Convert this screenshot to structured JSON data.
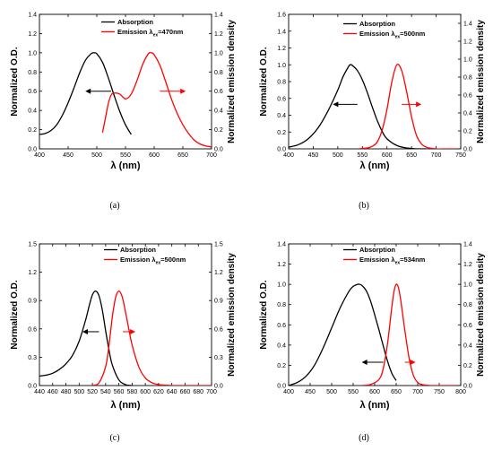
{
  "chart_data": [
    {
      "id": "a",
      "type": "line",
      "panel_label": "(a)",
      "xlabel": "λ (nm)",
      "ylabel_left": "Normalized O.D.",
      "ylabel_right": "Normalized emission density",
      "xlim": [
        400,
        700
      ],
      "ylim": [
        0,
        1.4
      ],
      "xticks": [
        400,
        450,
        500,
        550,
        600,
        650,
        700
      ],
      "xtick_labels": [
        "400",
        "450",
        "500",
        "550",
        "600",
        "650",
        "700"
      ],
      "yticks": [
        0,
        0.2,
        0.4,
        0.6,
        0.8,
        1.0,
        1.2,
        1.4
      ],
      "ytick_labels": [
        "0.0",
        "0.2",
        "0.4",
        "0.6",
        "0.8",
        "1.0",
        "1.2",
        "1.4"
      ],
      "legend": [
        {
          "label": "Absorption",
          "sub": "",
          "suffix": "",
          "color": "#000000"
        },
        {
          "label": "Emission λ",
          "sub": "ex",
          "suffix": "=470nm",
          "color": "#ff0000"
        }
      ],
      "series": [
        {
          "name": "Absorption",
          "color": "#000000",
          "x": [
            400,
            410,
            420,
            430,
            440,
            450,
            460,
            470,
            480,
            490,
            495,
            500,
            510,
            520,
            530,
            540,
            550,
            560
          ],
          "y": [
            0.15,
            0.16,
            0.19,
            0.25,
            0.35,
            0.48,
            0.63,
            0.79,
            0.92,
            0.99,
            1.0,
            0.99,
            0.9,
            0.74,
            0.56,
            0.39,
            0.25,
            0.15
          ]
        },
        {
          "name": "Emission λex=470nm",
          "color": "#ff0000",
          "x": [
            510,
            515,
            520,
            525,
            530,
            540,
            550,
            560,
            570,
            580,
            590,
            595,
            600,
            610,
            620,
            630,
            640,
            650,
            660,
            670,
            680,
            690,
            700
          ],
          "y": [
            0.17,
            0.32,
            0.47,
            0.56,
            0.58,
            0.57,
            0.52,
            0.57,
            0.71,
            0.88,
            0.99,
            1.0,
            0.98,
            0.87,
            0.7,
            0.52,
            0.37,
            0.25,
            0.16,
            0.09,
            0.05,
            0.03,
            0.02
          ]
        }
      ],
      "arrows": [
        {
          "color": "#000000",
          "y": 0.6,
          "x_from": 525,
          "x_to": 480
        },
        {
          "color": "#ff0000",
          "y": 0.6,
          "x_from": 610,
          "x_to": 655
        }
      ]
    },
    {
      "id": "b",
      "type": "line",
      "panel_label": "(b)",
      "xlabel": "λ (nm)",
      "ylabel_left": "Normalized O.D.",
      "ylabel_right": "Normalized emission density",
      "xlim": [
        400,
        750
      ],
      "ylim": [
        0,
        1.6
      ],
      "xticks": [
        400,
        450,
        500,
        550,
        600,
        650,
        700,
        750
      ],
      "xtick_labels": [
        "400",
        "450",
        "500",
        "550",
        "600",
        "650",
        "700",
        "750"
      ],
      "yticks": [
        0,
        0.2,
        0.4,
        0.6,
        0.8,
        1.0,
        1.2,
        1.4,
        1.6
      ],
      "ytick_labels": [
        "0.0",
        "0.2",
        "0.4",
        "0.6",
        "0.8",
        "1.0",
        "1.2",
        "1.4",
        "1.6"
      ],
      "right_yticks": [
        0,
        0.2,
        0.4,
        0.6,
        0.8,
        1.0,
        1.2,
        1.4
      ],
      "right_ytick_labels": [
        "0.0",
        "0.2",
        "0.4",
        "0.6",
        "0.8",
        "1.0",
        "1.2",
        "1.4"
      ],
      "right_ylim": [
        0,
        1.5
      ],
      "legend": [
        {
          "label": "Absorption",
          "sub": "",
          "suffix": "",
          "color": "#000000"
        },
        {
          "label": "Emission λ",
          "sub": "ex",
          "suffix": "=500nm",
          "color": "#ff0000"
        }
      ],
      "series": [
        {
          "name": "Absorption",
          "color": "#000000",
          "x": [
            400,
            420,
            440,
            460,
            480,
            500,
            510,
            520,
            525,
            530,
            540,
            550,
            560,
            570,
            580,
            590,
            600,
            620,
            640,
            660,
            680
          ],
          "y": [
            0.02,
            0.05,
            0.12,
            0.25,
            0.45,
            0.7,
            0.85,
            0.96,
            1.0,
            0.99,
            0.93,
            0.82,
            0.67,
            0.5,
            0.34,
            0.21,
            0.12,
            0.04,
            0.01,
            0.0,
            0.0
          ]
        },
        {
          "name": "Emission λex=500nm",
          "color": "#ff0000",
          "x": [
            540,
            560,
            570,
            580,
            590,
            600,
            610,
            620,
            630,
            640,
            650,
            660,
            670,
            680,
            700,
            720,
            740
          ],
          "y": [
            0.0,
            0.01,
            0.03,
            0.08,
            0.22,
            0.47,
            0.8,
            1.0,
            0.93,
            0.68,
            0.38,
            0.16,
            0.06,
            0.02,
            0.0,
            0.0,
            0.0
          ]
        }
      ],
      "arrows": [
        {
          "color": "#000000",
          "y": 0.53,
          "x_from": 540,
          "x_to": 490
        },
        {
          "color": "#ff0000",
          "y": 0.53,
          "x_from": 630,
          "x_to": 670
        }
      ]
    },
    {
      "id": "c",
      "type": "line",
      "panel_label": "(c)",
      "xlabel": "λ (nm)",
      "ylabel_left": "Normalized O.D.",
      "ylabel_right": "Normalized emission density",
      "xlim": [
        440,
        700
      ],
      "ylim": [
        0,
        1.5
      ],
      "xticks": [
        440,
        460,
        480,
        500,
        520,
        540,
        560,
        580,
        600,
        620,
        640,
        660,
        680,
        700
      ],
      "xtick_labels": [
        "440",
        "460",
        "480",
        "500",
        "520",
        "540",
        "560",
        "580",
        "600",
        "620",
        "640",
        "660",
        "680",
        "700"
      ],
      "yticks": [
        0,
        0.3,
        0.6,
        0.9,
        1.2,
        1.5
      ],
      "ytick_labels": [
        "0.0",
        "0.3",
        "0.6",
        "0.9",
        "1.2",
        "1.5"
      ],
      "legend": [
        {
          "label": "Absorption",
          "sub": "",
          "suffix": "",
          "color": "#000000"
        },
        {
          "label": "Emission λ",
          "sub": "ex",
          "suffix": "=500nm",
          "color": "#ff0000"
        }
      ],
      "series": [
        {
          "name": "Absorption",
          "color": "#000000",
          "x": [
            440,
            450,
            460,
            470,
            480,
            490,
            500,
            510,
            515,
            520,
            525,
            530,
            535,
            540,
            545,
            550,
            560,
            570,
            580
          ],
          "y": [
            0.1,
            0.11,
            0.13,
            0.17,
            0.23,
            0.32,
            0.47,
            0.7,
            0.84,
            0.96,
            1.0,
            0.95,
            0.8,
            0.58,
            0.38,
            0.22,
            0.06,
            0.01,
            0.0
          ]
        },
        {
          "name": "Emission λex=500nm",
          "color": "#ff0000",
          "x": [
            520,
            530,
            540,
            545,
            550,
            555,
            560,
            565,
            570,
            575,
            580,
            590,
            600,
            610,
            620,
            640,
            660,
            680,
            700
          ],
          "y": [
            0.0,
            0.03,
            0.2,
            0.42,
            0.72,
            0.93,
            1.0,
            0.94,
            0.78,
            0.6,
            0.43,
            0.2,
            0.08,
            0.03,
            0.01,
            0.0,
            0.0,
            0.0,
            0.0
          ]
        }
      ],
      "arrows": [
        {
          "color": "#000000",
          "y": 0.57,
          "x_from": 530,
          "x_to": 505
        },
        {
          "color": "#ff0000",
          "y": 0.57,
          "x_from": 566,
          "x_to": 585
        }
      ]
    },
    {
      "id": "d",
      "type": "line",
      "panel_label": "(d)",
      "xlabel": "λ (nm)",
      "ylabel_left": "Normalized O.D.",
      "ylabel_right": "Normalized emission density",
      "xlim": [
        400,
        800
      ],
      "ylim": [
        0,
        1.4
      ],
      "xticks": [
        400,
        450,
        500,
        550,
        600,
        650,
        700,
        750,
        800
      ],
      "xtick_labels": [
        "400",
        "450",
        "500",
        "550",
        "600",
        "650",
        "700",
        "750",
        "800"
      ],
      "yticks": [
        0,
        0.2,
        0.4,
        0.6,
        0.8,
        1.0,
        1.2,
        1.4
      ],
      "ytick_labels": [
        "0.0",
        "0.2",
        "0.4",
        "0.6",
        "0.8",
        "1.0",
        "1.2",
        "1.4"
      ],
      "legend": [
        {
          "label": "Absorption",
          "sub": "",
          "suffix": "",
          "color": "#000000"
        },
        {
          "label": "Emission λ",
          "sub": "ex",
          "suffix": "=534nm",
          "color": "#ff0000"
        }
      ],
      "series": [
        {
          "name": "Absorption",
          "color": "#000000",
          "x": [
            400,
            420,
            440,
            460,
            480,
            500,
            520,
            540,
            550,
            560,
            565,
            570,
            580,
            590,
            600,
            610,
            620,
            630,
            640,
            650
          ],
          "y": [
            0.0,
            0.03,
            0.09,
            0.2,
            0.37,
            0.57,
            0.77,
            0.93,
            0.98,
            1.0,
            1.0,
            0.99,
            0.94,
            0.84,
            0.7,
            0.55,
            0.39,
            0.24,
            0.12,
            0.05
          ]
        },
        {
          "name": "Emission λex=534nm",
          "color": "#ff0000",
          "x": [
            570,
            590,
            610,
            620,
            630,
            640,
            645,
            650,
            655,
            660,
            670,
            680,
            690,
            700,
            710,
            730,
            760,
            790
          ],
          "y": [
            0.0,
            0.01,
            0.06,
            0.17,
            0.42,
            0.78,
            0.93,
            1.0,
            0.97,
            0.86,
            0.55,
            0.27,
            0.1,
            0.03,
            0.01,
            0.0,
            0.0,
            0.0
          ]
        }
      ],
      "arrows": [
        {
          "color": "#000000",
          "y": 0.23,
          "x_from": 620,
          "x_to": 570
        },
        {
          "color": "#ff0000",
          "y": 0.23,
          "x_from": 670,
          "x_to": 695
        }
      ]
    }
  ]
}
